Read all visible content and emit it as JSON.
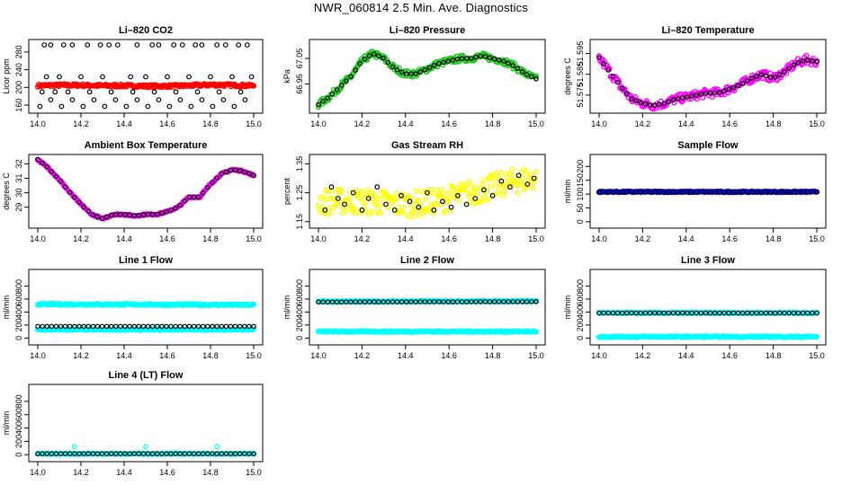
{
  "page_title": "NWR_060814  2.5 Min. Ave. Diagnostics",
  "colors": {
    "red": "#ff0000",
    "green": "#1ec81e",
    "magenta": "#ff00ff",
    "yellow": "#ffff00",
    "cyan": "#00ffff",
    "blue": "#0000ff",
    "black": "#000000"
  },
  "chart_data": [
    {
      "type": "scatter",
      "title": "Li–820 CO2",
      "ylabel": "Licor ppm",
      "xlim": [
        14.0,
        15.0
      ],
      "ylim": [
        150,
        300
      ],
      "xticks": [
        14.0,
        14.2,
        14.4,
        14.6,
        14.8,
        15.0
      ],
      "yticks": [
        160,
        200,
        240,
        280
      ],
      "series": [
        {
          "name": "dense",
          "color": "#ff0000",
          "style": "band",
          "x": [
            14.0,
            14.1,
            14.2,
            14.3,
            14.4,
            14.5,
            14.6,
            14.7,
            14.8,
            14.9,
            15.0
          ],
          "y": [
            204,
            205,
            205,
            204,
            204,
            203,
            203,
            204,
            206,
            205,
            204
          ],
          "spread": 3
        },
        {
          "name": "avg",
          "color": "#000000",
          "style": "circles",
          "x": [
            14.03,
            14.06,
            14.12,
            14.16,
            14.23,
            14.29,
            14.33,
            14.37,
            14.46,
            14.53,
            14.56,
            14.63,
            14.67,
            14.73,
            14.76,
            14.83,
            14.87,
            14.93,
            14.97,
            14.04,
            14.1,
            14.2,
            14.3,
            14.43,
            14.5,
            14.6,
            14.7,
            14.8,
            14.9,
            14.99,
            14.02,
            14.08,
            14.14,
            14.24,
            14.34,
            14.44,
            14.54,
            14.64,
            14.74,
            14.84,
            14.94,
            14.06,
            14.16,
            14.26,
            14.36,
            14.46,
            14.56,
            14.66,
            14.76,
            14.86,
            14.96,
            14.01,
            14.11,
            14.21,
            14.31,
            14.41,
            14.51,
            14.61,
            14.71,
            14.81,
            14.91
          ],
          "y": [
            296,
            296,
            296,
            296,
            296,
            296,
            296,
            296,
            296,
            296,
            296,
            296,
            296,
            296,
            296,
            296,
            296,
            296,
            296,
            224,
            224,
            224,
            224,
            224,
            224,
            224,
            224,
            224,
            224,
            224,
            190,
            190,
            190,
            190,
            190,
            190,
            190,
            190,
            190,
            190,
            190,
            172,
            172,
            172,
            172,
            172,
            172,
            172,
            172,
            172,
            172,
            157,
            157,
            157,
            157,
            157,
            157,
            157,
            157,
            157,
            157
          ]
        }
      ]
    },
    {
      "type": "scatter",
      "title": "Li–820 Pressure",
      "ylabel": "kPa",
      "xlim": [
        14.0,
        15.0
      ],
      "ylim": [
        66.85,
        67.11
      ],
      "xticks": [
        14.0,
        14.2,
        14.4,
        14.6,
        14.8,
        15.0
      ],
      "yticks": [
        66.95,
        67.05
      ],
      "ytick_labels": [
        "66.95",
        "67.05"
      ],
      "series": [
        {
          "name": "dense",
          "color": "#1ec81e",
          "style": "band",
          "x": [
            14.0,
            14.05,
            14.1,
            14.15,
            14.2,
            14.25,
            14.3,
            14.35,
            14.4,
            14.45,
            14.5,
            14.55,
            14.6,
            14.65,
            14.7,
            14.75,
            14.8,
            14.85,
            14.9,
            14.95,
            15.0
          ],
          "y": [
            66.87,
            66.9,
            66.94,
            66.98,
            67.04,
            67.07,
            67.05,
            67.01,
            66.99,
            66.99,
            67.01,
            67.03,
            67.04,
            67.05,
            67.05,
            67.06,
            67.05,
            67.04,
            67.02,
            66.99,
            66.97
          ],
          "spread": 0.012
        },
        {
          "name": "avg",
          "color": "#000000",
          "style": "circles-curve",
          "x": [
            14.0,
            14.05,
            14.1,
            14.15,
            14.2,
            14.25,
            14.3,
            14.35,
            14.4,
            14.45,
            14.5,
            14.55,
            14.6,
            14.65,
            14.7,
            14.75,
            14.8,
            14.85,
            14.9,
            14.95,
            15.0
          ],
          "y": [
            66.87,
            66.9,
            66.94,
            66.98,
            67.04,
            67.07,
            67.05,
            67.01,
            66.99,
            66.99,
            67.01,
            67.03,
            67.04,
            67.05,
            67.05,
            67.06,
            67.05,
            67.04,
            67.02,
            66.99,
            66.97
          ]
        }
      ]
    },
    {
      "type": "scatter",
      "title": "Li–820 Temperature",
      "ylabel": "degrees C",
      "xlim": [
        14.0,
        15.0
      ],
      "ylim": [
        51.568,
        51.6
      ],
      "xticks": [
        14.0,
        14.2,
        14.4,
        14.6,
        14.8,
        15.0
      ],
      "yticks": [
        51.575,
        51.585,
        51.595
      ],
      "ytick_labels": [
        "51.575",
        "51.585",
        "51.595"
      ],
      "series": [
        {
          "name": "dense",
          "color": "#ff00ff",
          "style": "band",
          "x": [
            14.0,
            14.05,
            14.1,
            14.15,
            14.2,
            14.25,
            14.3,
            14.35,
            14.4,
            14.45,
            14.5,
            14.55,
            14.6,
            14.65,
            14.7,
            14.75,
            14.8,
            14.85,
            14.9,
            14.95,
            15.0
          ],
          "y": [
            51.593,
            51.586,
            51.579,
            51.573,
            51.571,
            51.57,
            51.571,
            51.573,
            51.574,
            51.575,
            51.576,
            51.576,
            51.578,
            51.58,
            51.583,
            51.585,
            51.583,
            51.586,
            51.59,
            51.592,
            51.591
          ],
          "spread": 0.002
        },
        {
          "name": "avg",
          "color": "#000000",
          "style": "circles-curve",
          "x": [
            14.0,
            14.05,
            14.1,
            14.15,
            14.2,
            14.25,
            14.3,
            14.35,
            14.4,
            14.45,
            14.5,
            14.55,
            14.6,
            14.65,
            14.7,
            14.75,
            14.8,
            14.85,
            14.9,
            14.95,
            15.0
          ],
          "y": [
            51.593,
            51.586,
            51.579,
            51.573,
            51.571,
            51.57,
            51.571,
            51.573,
            51.574,
            51.575,
            51.576,
            51.576,
            51.578,
            51.58,
            51.583,
            51.585,
            51.583,
            51.586,
            51.59,
            51.592,
            51.591
          ]
        }
      ]
    },
    {
      "type": "scatter",
      "title": "Ambient Box Temperature",
      "ylabel": "degrees C",
      "xlim": [
        14.0,
        15.0
      ],
      "ylim": [
        27.8,
        32.4
      ],
      "xticks": [
        14.0,
        14.2,
        14.4,
        14.6,
        14.8,
        15.0
      ],
      "yticks": [
        29,
        30,
        31,
        32
      ],
      "series": [
        {
          "name": "dense",
          "color": "#ff00ff",
          "style": "band",
          "x": [
            14.0,
            14.05,
            14.1,
            14.15,
            14.2,
            14.25,
            14.3,
            14.35,
            14.4,
            14.45,
            14.5,
            14.55,
            14.6,
            14.65,
            14.7,
            14.75,
            14.8,
            14.85,
            14.9,
            14.95,
            15.0
          ],
          "y": [
            32.3,
            31.7,
            30.9,
            30.0,
            29.2,
            28.5,
            28.2,
            28.5,
            28.5,
            28.4,
            28.5,
            28.5,
            28.7,
            29.0,
            29.7,
            29.7,
            30.6,
            31.3,
            31.6,
            31.5,
            31.2
          ],
          "spread": 0.05
        },
        {
          "name": "avg",
          "color": "#000000",
          "style": "circles-curve",
          "x": [
            14.0,
            14.05,
            14.1,
            14.15,
            14.2,
            14.25,
            14.3,
            14.35,
            14.4,
            14.45,
            14.5,
            14.55,
            14.6,
            14.65,
            14.7,
            14.75,
            14.8,
            14.85,
            14.9,
            14.95,
            15.0
          ],
          "y": [
            32.3,
            31.7,
            30.9,
            30.0,
            29.2,
            28.5,
            28.2,
            28.5,
            28.5,
            28.4,
            28.5,
            28.5,
            28.7,
            29.0,
            29.7,
            29.7,
            30.6,
            31.3,
            31.6,
            31.5,
            31.2
          ]
        }
      ]
    },
    {
      "type": "scatter",
      "title": "Gas Stream RH",
      "ylabel": "percent",
      "xlim": [
        14.0,
        15.0
      ],
      "ylim": [
        1.14,
        1.37
      ],
      "xticks": [
        14.0,
        14.2,
        14.4,
        14.6,
        14.8,
        15.0
      ],
      "yticks": [
        1.15,
        1.25,
        1.35
      ],
      "ytick_labels": [
        "1.15",
        "1.25",
        "1.35"
      ],
      "series": [
        {
          "name": "dense",
          "color": "#ffff00",
          "style": "band",
          "x": [
            14.0,
            14.1,
            14.2,
            14.3,
            14.4,
            14.5,
            14.6,
            14.7,
            14.8,
            14.9,
            15.0
          ],
          "y": [
            1.22,
            1.22,
            1.22,
            1.215,
            1.21,
            1.215,
            1.23,
            1.25,
            1.27,
            1.29,
            1.3
          ],
          "spread": 0.045
        },
        {
          "name": "avg",
          "color": "#000000",
          "style": "circles",
          "x": [
            14.03,
            14.06,
            14.09,
            14.12,
            14.16,
            14.2,
            14.23,
            14.27,
            14.31,
            14.35,
            14.38,
            14.42,
            14.46,
            14.5,
            14.53,
            14.57,
            14.61,
            14.64,
            14.68,
            14.72,
            14.76,
            14.8,
            14.84,
            14.88,
            14.92,
            14.96,
            14.99
          ],
          "y": [
            1.19,
            1.27,
            1.23,
            1.21,
            1.25,
            1.19,
            1.23,
            1.27,
            1.21,
            1.19,
            1.24,
            1.22,
            1.2,
            1.25,
            1.19,
            1.22,
            1.2,
            1.24,
            1.21,
            1.23,
            1.26,
            1.24,
            1.29,
            1.27,
            1.31,
            1.28,
            1.3
          ]
        }
      ]
    },
    {
      "type": "scatter",
      "title": "Sample Flow",
      "ylabel": "ml/min",
      "xlim": [
        14.0,
        15.0
      ],
      "ylim": [
        -10,
        230
      ],
      "xticks": [
        14.0,
        14.2,
        14.4,
        14.6,
        14.8,
        15.0
      ],
      "yticks": [
        0,
        50,
        100,
        150,
        200
      ],
      "series": [
        {
          "name": "dense",
          "color": "#0000ff",
          "style": "band",
          "x": [
            14.0,
            15.0
          ],
          "y": [
            108,
            108
          ],
          "spread": 2
        },
        {
          "name": "avg",
          "color": "#000000",
          "style": "circles-flat",
          "x": [
            14.0,
            15.0
          ],
          "y": [
            108,
            108
          ]
        }
      ]
    },
    {
      "type": "scatter",
      "title": "Line 1 Flow",
      "ylabel": "ml/min",
      "xlim": [
        14.0,
        15.0
      ],
      "ylim": [
        -50,
        1000
      ],
      "xticks": [
        14.0,
        14.2,
        14.4,
        14.6,
        14.8,
        15.0
      ],
      "yticks": [
        0,
        200,
        400,
        600,
        800
      ],
      "series": [
        {
          "name": "cyan-high",
          "color": "#00ffff",
          "style": "band",
          "x": [
            14.0,
            15.0
          ],
          "y": [
            520,
            510
          ],
          "spread": 12
        },
        {
          "name": "cyan-low",
          "color": "#00ffff",
          "style": "band",
          "x": [
            14.0,
            15.0
          ],
          "y": [
            130,
            130
          ],
          "spread": 10
        },
        {
          "name": "avg",
          "color": "#000000",
          "style": "circles-flat",
          "x": [
            14.0,
            15.0
          ],
          "y": [
            180,
            180
          ]
        }
      ]
    },
    {
      "type": "scatter",
      "title": "Line 2 Flow",
      "ylabel": "ml/min",
      "xlim": [
        14.0,
        15.0
      ],
      "ylim": [
        -50,
        1000
      ],
      "xticks": [
        14.0,
        14.2,
        14.4,
        14.6,
        14.8,
        15.0
      ],
      "yticks": [
        0,
        200,
        400,
        600,
        800
      ],
      "series": [
        {
          "name": "cyan-high",
          "color": "#00ffff",
          "style": "band",
          "x": [
            14.0,
            15.0
          ],
          "y": [
            560,
            570
          ],
          "spread": 10
        },
        {
          "name": "cyan-low",
          "color": "#00ffff",
          "style": "band",
          "x": [
            14.0,
            15.0
          ],
          "y": [
            100,
            100
          ],
          "spread": 10
        },
        {
          "name": "avg",
          "color": "#000000",
          "style": "circles-flat",
          "x": [
            14.0,
            15.0
          ],
          "y": [
            555,
            560
          ]
        }
      ]
    },
    {
      "type": "scatter",
      "title": "Line 3 Flow",
      "ylabel": "ml/min",
      "xlim": [
        14.0,
        15.0
      ],
      "ylim": [
        -50,
        1000
      ],
      "xticks": [
        14.0,
        14.2,
        14.4,
        14.6,
        14.8,
        15.0
      ],
      "yticks": [
        0,
        200,
        400,
        600,
        800
      ],
      "series": [
        {
          "name": "cyan-high",
          "color": "#00ffff",
          "style": "band",
          "x": [
            14.0,
            15.0
          ],
          "y": [
            385,
            385
          ],
          "spread": 10
        },
        {
          "name": "cyan-low",
          "color": "#00ffff",
          "style": "band",
          "x": [
            14.0,
            15.0
          ],
          "y": [
            20,
            20
          ],
          "spread": 10
        },
        {
          "name": "avg",
          "color": "#000000",
          "style": "circles-flat",
          "x": [
            14.0,
            15.0
          ],
          "y": [
            385,
            385
          ]
        }
      ]
    },
    {
      "type": "scatter",
      "title": "Line 4 (LT) Flow",
      "ylabel": "ml/min",
      "xlim": [
        14.0,
        15.0
      ],
      "ylim": [
        -50,
        1000
      ],
      "xticks": [
        14.0,
        14.2,
        14.4,
        14.6,
        14.8,
        15.0
      ],
      "yticks": [
        0,
        200,
        400,
        600,
        800
      ],
      "series": [
        {
          "name": "cyan",
          "color": "#00ffff",
          "style": "band",
          "x": [
            14.0,
            15.0
          ],
          "y": [
            15,
            15
          ],
          "spread": 8
        },
        {
          "name": "cyan-spikes",
          "color": "#00ffff",
          "style": "circles",
          "x": [
            14.17,
            14.5,
            14.83
          ],
          "y": [
            120,
            120,
            120
          ]
        },
        {
          "name": "avg",
          "color": "#000000",
          "style": "circles-flat",
          "x": [
            14.0,
            15.0
          ],
          "y": [
            15,
            15
          ]
        }
      ]
    }
  ]
}
